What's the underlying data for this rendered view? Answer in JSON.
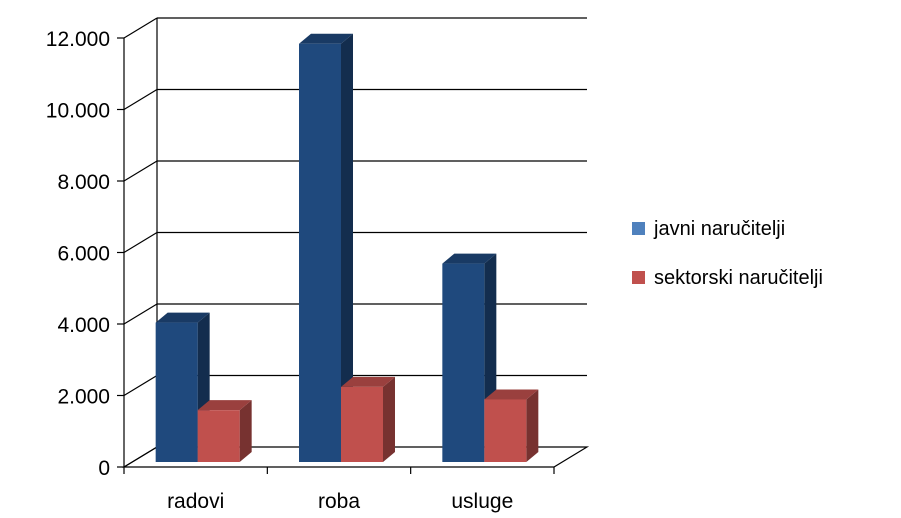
{
  "chart_data": {
    "type": "bar",
    "subtype": "3d-clustered-column",
    "categories": [
      "radovi",
      "roba",
      "usluge"
    ],
    "series": [
      {
        "name": "javni naručitelji",
        "values": [
          3900,
          11700,
          5550
        ],
        "color": "#1f497d",
        "legend_color": "#4f81bd"
      },
      {
        "name": "sektorski naručitelji",
        "values": [
          1450,
          2100,
          1750
        ],
        "color": "#c0504d",
        "legend_color": "#c0504d"
      }
    ],
    "ylim": [
      0,
      12000
    ],
    "y_ticks": [
      0,
      2000,
      4000,
      6000,
      8000,
      10000,
      12000
    ],
    "y_tick_labels": [
      "0",
      "2.000",
      "4.000",
      "6.000",
      "8.000",
      "10.000",
      "12.000"
    ],
    "title": "",
    "xlabel": "",
    "ylabel": "",
    "grid": true,
    "legend_position": "right"
  }
}
